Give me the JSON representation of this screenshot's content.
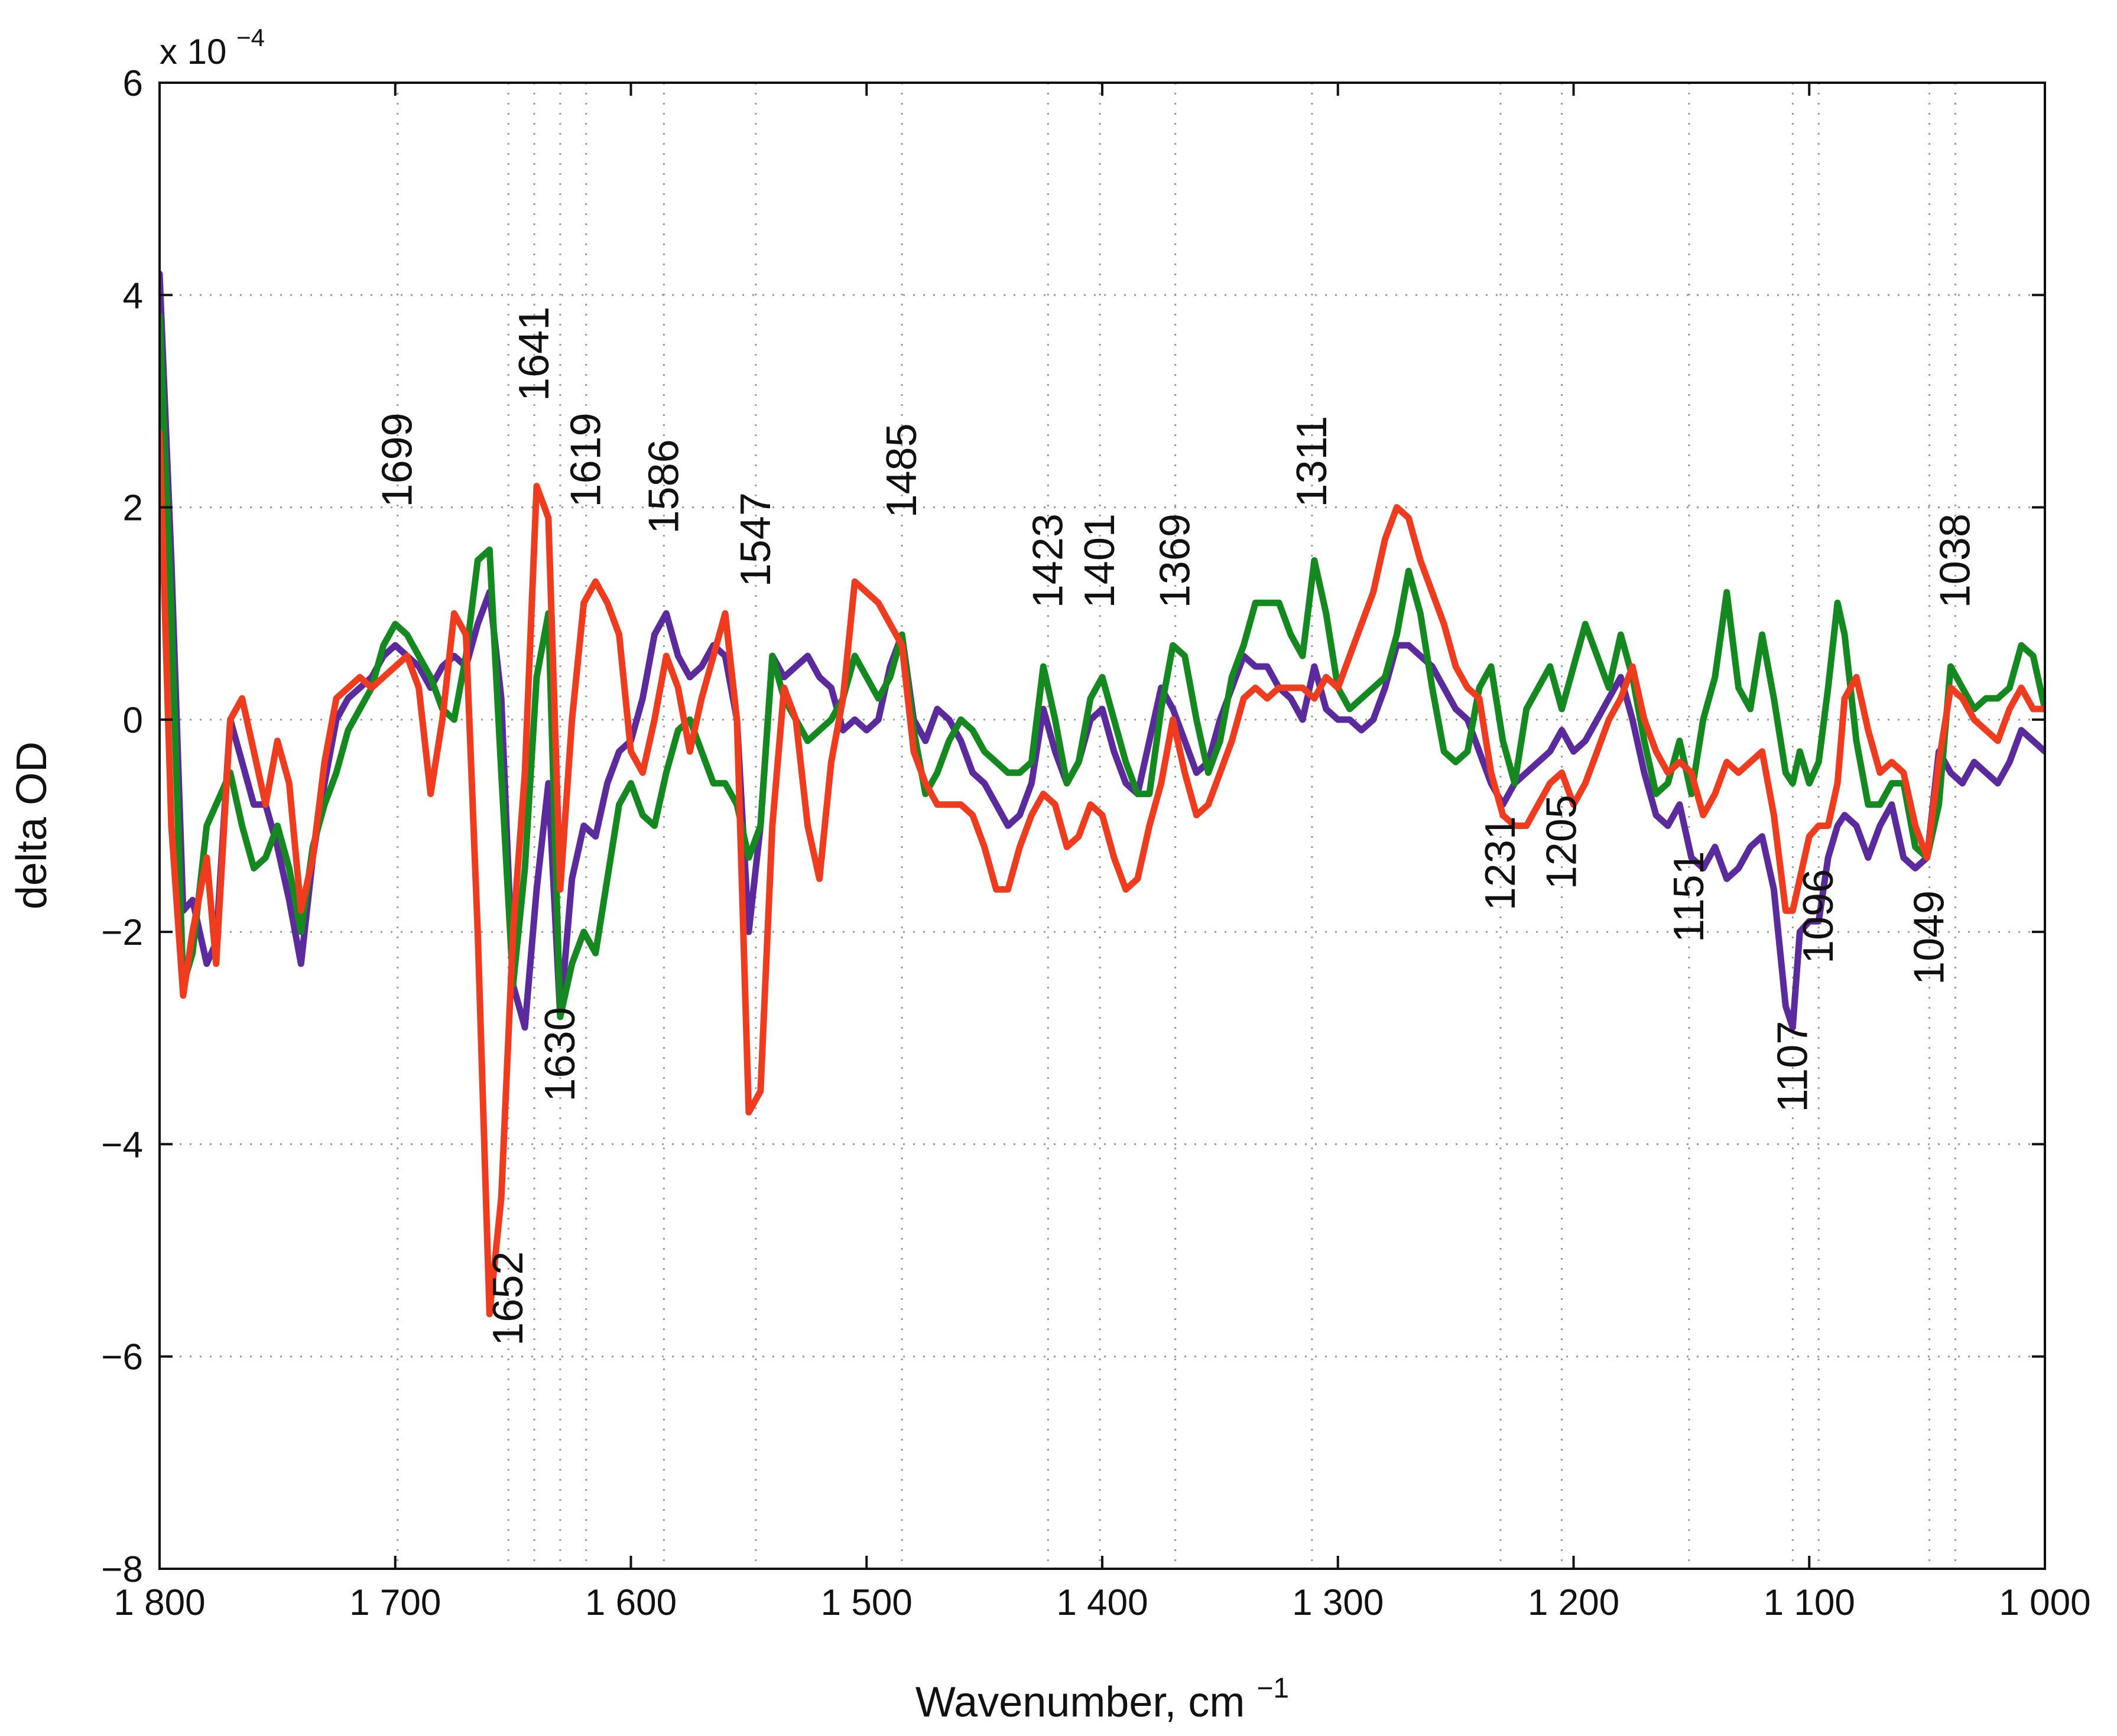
{
  "chart_data": {
    "type": "line",
    "xlabel": "Wavenumber, cm",
    "xlabel_superscript": "−1",
    "ylabel": "delta OD",
    "y_multiplier": "x 10",
    "y_multiplier_exp": "−4",
    "xlim": [
      1800,
      1000
    ],
    "ylim": [
      -8,
      6
    ],
    "grid": "dotted",
    "x_ticks": [
      1800,
      1700,
      1600,
      1500,
      1400,
      1300,
      1200,
      1100,
      1000
    ],
    "x_tick_labels": [
      "1 800",
      "1 700",
      "1 600",
      "1 500",
      "1 400",
      "1 300",
      "1 200",
      "1 100",
      "1 000"
    ],
    "y_ticks": [
      -8,
      -6,
      -4,
      -2,
      0,
      2,
      4,
      6
    ],
    "y_tick_labels": [
      "−8",
      "−6",
      "−4",
      "−2",
      "0",
      "2",
      "4",
      "6"
    ],
    "x_gridlines": [
      1699,
      1652,
      1641,
      1630,
      1619,
      1586,
      1547,
      1485,
      1423,
      1401,
      1369,
      1311,
      1231,
      1205,
      1151,
      1107,
      1096,
      1049,
      1038
    ],
    "annotations": [
      {
        "text": "1699",
        "x": 1699,
        "y": 2.0
      },
      {
        "text": "1641",
        "x": 1641,
        "y": 3.0
      },
      {
        "text": "1619",
        "x": 1619,
        "y": 2.0
      },
      {
        "text": "1586",
        "x": 1586,
        "y": 1.75
      },
      {
        "text": "1547",
        "x": 1547,
        "y": 1.25
      },
      {
        "text": "1485",
        "x": 1485,
        "y": 1.9
      },
      {
        "text": "1423",
        "x": 1423,
        "y": 1.05
      },
      {
        "text": "1401",
        "x": 1401,
        "y": 1.05
      },
      {
        "text": "1369",
        "x": 1369,
        "y": 1.05
      },
      {
        "text": "1311",
        "x": 1311,
        "y": 2.0
      },
      {
        "text": "1038",
        "x": 1038,
        "y": 1.05
      },
      {
        "text": "1231",
        "x": 1231,
        "y": -1.8
      },
      {
        "text": "1205",
        "x": 1205,
        "y": -1.6
      },
      {
        "text": "1151",
        "x": 1151,
        "y": -2.1
      },
      {
        "text": "1096",
        "x": 1096,
        "y": -2.3
      },
      {
        "text": "1049",
        "x": 1049,
        "y": -2.5
      },
      {
        "text": "1630",
        "x": 1630,
        "y": -3.6
      },
      {
        "text": "1107",
        "x": 1107,
        "y": -3.7
      },
      {
        "text": "1652",
        "x": 1652,
        "y": -5.9
      }
    ],
    "series": [
      {
        "name": "purple",
        "color": "#5b2b9e",
        "x": [
          1800,
          1795,
          1790,
          1786,
          1780,
          1776,
          1770,
          1765,
          1760,
          1755,
          1750,
          1745,
          1740,
          1735,
          1730,
          1725,
          1720,
          1715,
          1710,
          1705,
          1700,
          1695,
          1690,
          1685,
          1680,
          1675,
          1670,
          1665,
          1660,
          1655,
          1650,
          1645,
          1640,
          1635,
          1630,
          1625,
          1620,
          1615,
          1610,
          1605,
          1600,
          1595,
          1590,
          1585,
          1580,
          1575,
          1570,
          1565,
          1560,
          1555,
          1550,
          1545,
          1540,
          1535,
          1530,
          1525,
          1520,
          1515,
          1510,
          1505,
          1500,
          1495,
          1490,
          1485,
          1480,
          1475,
          1470,
          1465,
          1460,
          1455,
          1450,
          1445,
          1440,
          1435,
          1430,
          1425,
          1420,
          1415,
          1410,
          1405,
          1400,
          1395,
          1390,
          1385,
          1380,
          1375,
          1370,
          1365,
          1360,
          1355,
          1350,
          1345,
          1340,
          1335,
          1330,
          1325,
          1320,
          1315,
          1310,
          1305,
          1300,
          1295,
          1290,
          1285,
          1280,
          1275,
          1270,
          1265,
          1260,
          1255,
          1250,
          1245,
          1240,
          1235,
          1230,
          1225,
          1220,
          1215,
          1210,
          1205,
          1200,
          1195,
          1190,
          1185,
          1180,
          1175,
          1170,
          1165,
          1160,
          1155,
          1150,
          1145,
          1140,
          1135,
          1130,
          1125,
          1120,
          1115,
          1110,
          1107,
          1104,
          1100,
          1096,
          1092,
          1088,
          1085,
          1080,
          1075,
          1070,
          1065,
          1060,
          1055,
          1050,
          1045,
          1040,
          1035,
          1030,
          1025,
          1020,
          1015,
          1010,
          1005,
          1000
        ],
        "y": [
          4.2,
          1.5,
          -1.8,
          -1.7,
          -2.3,
          -2.1,
          0.0,
          -0.4,
          -0.8,
          -0.8,
          -1.2,
          -1.7,
          -2.3,
          -1.3,
          -0.6,
          0.0,
          0.2,
          0.3,
          0.4,
          0.6,
          0.7,
          0.6,
          0.5,
          0.3,
          0.5,
          0.6,
          0.5,
          0.9,
          1.2,
          0.2,
          -2.5,
          -2.9,
          -1.6,
          -0.6,
          -2.8,
          -1.5,
          -1.0,
          -1.1,
          -0.6,
          -0.3,
          -0.2,
          0.2,
          0.8,
          1.0,
          0.6,
          0.4,
          0.5,
          0.7,
          0.6,
          0.0,
          -2.0,
          -1.0,
          0.6,
          0.4,
          0.5,
          0.6,
          0.4,
          0.3,
          -0.1,
          0.0,
          -0.1,
          0.0,
          0.5,
          0.8,
          0.0,
          -0.2,
          0.1,
          0.0,
          -0.2,
          -0.5,
          -0.6,
          -0.8,
          -1.0,
          -0.9,
          -0.6,
          0.1,
          -0.3,
          -0.6,
          -0.4,
          0.0,
          0.1,
          -0.3,
          -0.6,
          -0.7,
          -0.2,
          0.3,
          0.1,
          -0.2,
          -0.5,
          -0.4,
          0.0,
          0.3,
          0.6,
          0.5,
          0.5,
          0.3,
          0.2,
          0.0,
          0.5,
          0.1,
          0.0,
          0.0,
          -0.1,
          0.0,
          0.3,
          0.7,
          0.7,
          0.6,
          0.5,
          0.3,
          0.1,
          0.0,
          -0.3,
          -0.6,
          -0.8,
          -0.6,
          -0.5,
          -0.4,
          -0.3,
          -0.1,
          -0.3,
          -0.2,
          0.0,
          0.2,
          0.4,
          0.0,
          -0.5,
          -0.9,
          -1.0,
          -0.8,
          -1.3,
          -1.4,
          -1.2,
          -1.5,
          -1.4,
          -1.2,
          -1.1,
          -1.6,
          -2.7,
          -2.9,
          -2.0,
          -1.9,
          -1.9,
          -1.3,
          -1.0,
          -0.9,
          -1.0,
          -1.3,
          -1.0,
          -0.8,
          -1.3,
          -1.4,
          -1.3,
          -0.3,
          -0.5,
          -0.6,
          -0.4,
          -0.5,
          -0.6,
          -0.4,
          -0.1,
          -0.2,
          -0.3
        ]
      },
      {
        "name": "green",
        "color": "#13891f",
        "x": [
          1800,
          1795,
          1790,
          1786,
          1780,
          1776,
          1770,
          1765,
          1760,
          1755,
          1750,
          1745,
          1740,
          1735,
          1730,
          1725,
          1720,
          1715,
          1710,
          1705,
          1700,
          1695,
          1690,
          1685,
          1680,
          1675,
          1670,
          1665,
          1660,
          1655,
          1650,
          1645,
          1640,
          1635,
          1630,
          1625,
          1620,
          1615,
          1610,
          1605,
          1600,
          1595,
          1590,
          1585,
          1580,
          1575,
          1570,
          1565,
          1560,
          1555,
          1550,
          1545,
          1540,
          1535,
          1530,
          1525,
          1520,
          1515,
          1510,
          1505,
          1500,
          1495,
          1490,
          1485,
          1480,
          1475,
          1470,
          1465,
          1460,
          1455,
          1450,
          1445,
          1440,
          1435,
          1430,
          1425,
          1420,
          1415,
          1410,
          1405,
          1400,
          1395,
          1390,
          1385,
          1380,
          1375,
          1370,
          1365,
          1360,
          1355,
          1350,
          1345,
          1340,
          1335,
          1330,
          1325,
          1320,
          1315,
          1310,
          1305,
          1300,
          1295,
          1290,
          1285,
          1280,
          1275,
          1270,
          1265,
          1260,
          1255,
          1250,
          1245,
          1240,
          1235,
          1230,
          1225,
          1220,
          1215,
          1210,
          1205,
          1200,
          1195,
          1190,
          1185,
          1180,
          1175,
          1170,
          1165,
          1160,
          1155,
          1150,
          1145,
          1140,
          1135,
          1130,
          1125,
          1120,
          1115,
          1110,
          1107,
          1104,
          1100,
          1096,
          1092,
          1088,
          1085,
          1080,
          1075,
          1070,
          1065,
          1060,
          1055,
          1050,
          1045,
          1040,
          1035,
          1030,
          1025,
          1020,
          1015,
          1010,
          1005,
          1000
        ],
        "y": [
          3.8,
          1.0,
          -2.5,
          -2.2,
          -1.0,
          -0.8,
          -0.5,
          -1.0,
          -1.4,
          -1.3,
          -1.0,
          -1.4,
          -2.0,
          -1.2,
          -0.8,
          -0.5,
          -0.1,
          0.1,
          0.3,
          0.7,
          0.9,
          0.8,
          0.6,
          0.4,
          0.1,
          0.0,
          0.6,
          1.5,
          1.6,
          -0.5,
          -2.5,
          -1.4,
          0.4,
          1.0,
          -2.8,
          -2.3,
          -2.0,
          -2.2,
          -1.5,
          -0.8,
          -0.6,
          -0.9,
          -1.0,
          -0.5,
          -0.1,
          0.0,
          -0.3,
          -0.6,
          -0.6,
          -0.8,
          -1.3,
          -1.0,
          0.6,
          0.2,
          0.0,
          -0.2,
          -0.1,
          0.0,
          0.2,
          0.6,
          0.4,
          0.2,
          0.4,
          0.8,
          -0.1,
          -0.7,
          -0.5,
          -0.2,
          0.0,
          -0.1,
          -0.3,
          -0.4,
          -0.5,
          -0.5,
          -0.4,
          0.5,
          0.0,
          -0.6,
          -0.4,
          0.2,
          0.4,
          0.0,
          -0.4,
          -0.7,
          -0.7,
          0.1,
          0.7,
          0.6,
          0.0,
          -0.5,
          -0.2,
          0.4,
          0.7,
          1.1,
          1.1,
          1.1,
          0.8,
          0.6,
          1.5,
          1.0,
          0.3,
          0.1,
          0.2,
          0.3,
          0.4,
          0.8,
          1.4,
          1.0,
          0.3,
          -0.3,
          -0.4,
          -0.3,
          0.3,
          0.5,
          -0.2,
          -0.6,
          0.1,
          0.3,
          0.5,
          0.1,
          0.5,
          0.9,
          0.6,
          0.3,
          0.8,
          0.4,
          -0.2,
          -0.7,
          -0.6,
          -0.2,
          -0.7,
          0.0,
          0.4,
          1.2,
          0.3,
          0.1,
          0.8,
          0.2,
          -0.5,
          -0.6,
          -0.3,
          -0.6,
          -0.4,
          0.3,
          1.1,
          0.8,
          -0.2,
          -0.8,
          -0.8,
          -0.6,
          -0.6,
          -1.2,
          -1.3,
          -0.8,
          0.5,
          0.3,
          0.1,
          0.2,
          0.2,
          0.3,
          0.7,
          0.6,
          0.1
        ]
      },
      {
        "name": "red",
        "color": "#f03c1e",
        "x": [
          1800,
          1795,
          1790,
          1786,
          1780,
          1776,
          1770,
          1765,
          1760,
          1755,
          1750,
          1745,
          1740,
          1735,
          1730,
          1725,
          1720,
          1715,
          1710,
          1705,
          1700,
          1695,
          1690,
          1685,
          1680,
          1675,
          1670,
          1665,
          1660,
          1655,
          1650,
          1645,
          1640,
          1635,
          1630,
          1625,
          1620,
          1615,
          1610,
          1605,
          1600,
          1595,
          1590,
          1585,
          1580,
          1575,
          1570,
          1565,
          1560,
          1555,
          1550,
          1545,
          1540,
          1535,
          1530,
          1525,
          1520,
          1515,
          1510,
          1505,
          1500,
          1495,
          1490,
          1485,
          1480,
          1475,
          1470,
          1465,
          1460,
          1455,
          1450,
          1445,
          1440,
          1435,
          1430,
          1425,
          1420,
          1415,
          1410,
          1405,
          1400,
          1395,
          1390,
          1385,
          1380,
          1375,
          1370,
          1365,
          1360,
          1355,
          1350,
          1345,
          1340,
          1335,
          1330,
          1325,
          1320,
          1315,
          1310,
          1305,
          1300,
          1295,
          1290,
          1285,
          1280,
          1275,
          1270,
          1265,
          1260,
          1255,
          1250,
          1245,
          1240,
          1235,
          1230,
          1225,
          1220,
          1215,
          1210,
          1205,
          1200,
          1195,
          1190,
          1185,
          1180,
          1175,
          1170,
          1165,
          1160,
          1155,
          1150,
          1145,
          1140,
          1135,
          1130,
          1125,
          1120,
          1115,
          1110,
          1107,
          1104,
          1100,
          1096,
          1092,
          1088,
          1085,
          1080,
          1075,
          1070,
          1065,
          1060,
          1055,
          1050,
          1045,
          1040,
          1035,
          1030,
          1025,
          1020,
          1015,
          1010,
          1005,
          1000
        ],
        "y": [
          2.7,
          -1.0,
          -2.6,
          -2.0,
          -1.3,
          -2.3,
          0.0,
          0.2,
          -0.3,
          -0.8,
          -0.2,
          -0.6,
          -1.8,
          -1.3,
          -0.4,
          0.2,
          0.3,
          0.4,
          0.3,
          0.4,
          0.5,
          0.6,
          0.3,
          -0.7,
          0.0,
          1.0,
          0.8,
          -2.0,
          -5.6,
          -4.5,
          -2.0,
          -0.5,
          2.2,
          1.9,
          -1.6,
          0.0,
          1.1,
          1.3,
          1.1,
          0.8,
          -0.3,
          -0.5,
          0.0,
          0.6,
          0.3,
          -0.3,
          0.2,
          0.6,
          1.0,
          0.0,
          -3.7,
          -3.5,
          -1.0,
          0.3,
          0.0,
          -1.0,
          -1.5,
          -0.4,
          0.2,
          1.3,
          1.2,
          1.1,
          0.9,
          0.7,
          -0.3,
          -0.6,
          -0.8,
          -0.8,
          -0.8,
          -0.9,
          -1.2,
          -1.6,
          -1.6,
          -1.2,
          -0.9,
          -0.7,
          -0.8,
          -1.2,
          -1.1,
          -0.8,
          -0.9,
          -1.3,
          -1.6,
          -1.5,
          -1.0,
          -0.6,
          0.0,
          -0.5,
          -0.9,
          -0.8,
          -0.5,
          -0.2,
          0.2,
          0.3,
          0.2,
          0.3,
          0.3,
          0.3,
          0.2,
          0.4,
          0.3,
          0.6,
          0.9,
          1.2,
          1.7,
          2.0,
          1.9,
          1.5,
          1.2,
          0.9,
          0.5,
          0.3,
          0.2,
          -0.5,
          -0.9,
          -1.0,
          -1.0,
          -0.8,
          -0.6,
          -0.5,
          -0.8,
          -0.6,
          -0.3,
          0.0,
          0.2,
          0.5,
          0.0,
          -0.3,
          -0.5,
          -0.4,
          -0.5,
          -0.9,
          -0.7,
          -0.4,
          -0.5,
          -0.4,
          -0.3,
          -0.9,
          -1.8,
          -1.8,
          -1.5,
          -1.1,
          -1.0,
          -1.0,
          -0.6,
          0.2,
          0.4,
          -0.1,
          -0.5,
          -0.4,
          -0.5,
          -1.0,
          -1.3,
          -0.4,
          0.3,
          0.2,
          0.0,
          -0.1,
          -0.2,
          0.1,
          0.3,
          0.1,
          0.1
        ]
      }
    ]
  }
}
